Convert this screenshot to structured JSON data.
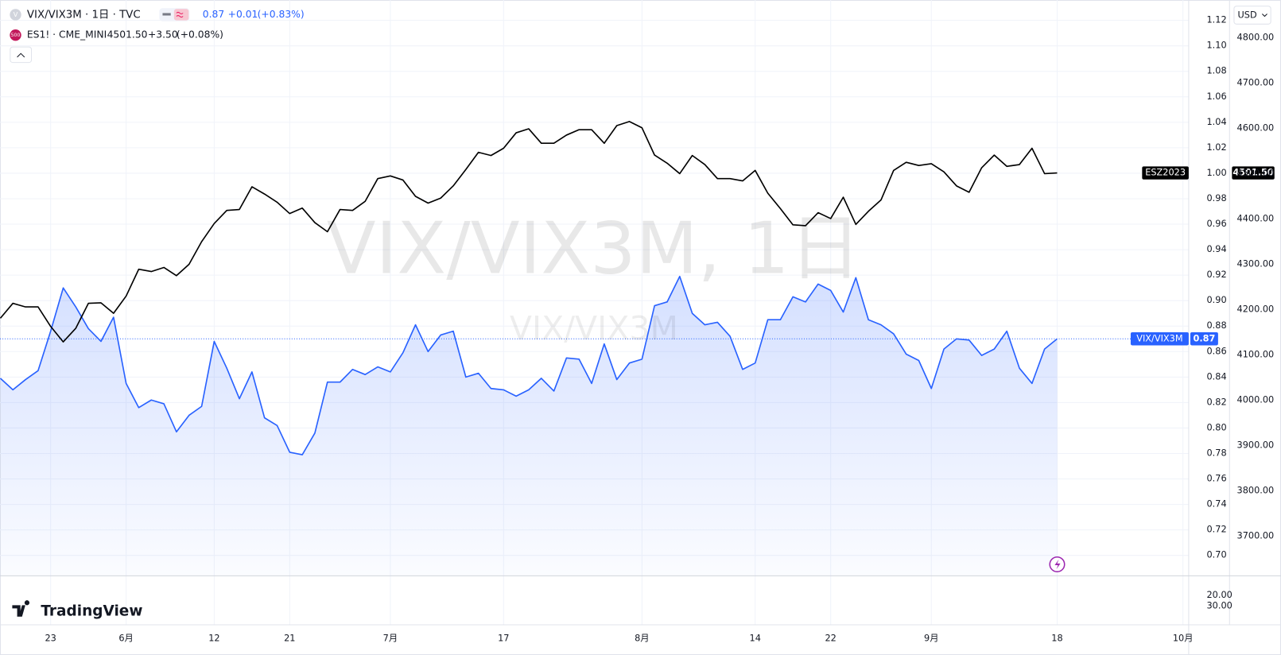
{
  "chart_data": {
    "type": "line",
    "categories": [
      null,
      null,
      null,
      null,
      "23",
      null,
      null,
      null,
      null,
      null,
      "6月",
      null,
      null,
      null,
      null,
      null,
      null,
      "12",
      null,
      null,
      null,
      null,
      null,
      "21",
      null,
      null,
      null,
      null,
      null,
      null,
      null,
      "7月",
      null,
      null,
      null,
      null,
      null,
      null,
      null,
      null,
      "17",
      null,
      null,
      null,
      null,
      null,
      null,
      null,
      null,
      null,
      null,
      "8月",
      null,
      null,
      null,
      null,
      null,
      null,
      null,
      null,
      "14",
      null,
      null,
      null,
      null,
      null,
      "22",
      null,
      null,
      null,
      null,
      null,
      null,
      null,
      "9月",
      null,
      null,
      null,
      null,
      null,
      null,
      null,
      null,
      null,
      "18",
      null,
      null,
      null,
      null,
      null,
      null,
      null,
      null,
      null,
      "10月"
    ],
    "series": [
      {
        "name": "VIX/VIX3M",
        "color": "#2962ff",
        "area": true,
        "last_label": "0.87",
        "values": [
          0.839,
          0.83,
          0.838,
          0.845,
          0.876,
          0.91,
          0.895,
          0.878,
          0.868,
          0.887,
          0.835,
          0.816,
          0.822,
          0.819,
          0.797,
          0.81,
          0.817,
          0.868,
          0.847,
          0.823,
          0.844,
          0.808,
          0.802,
          0.781,
          0.779,
          0.796,
          0.836,
          0.836,
          0.846,
          0.842,
          0.848,
          0.844,
          0.859,
          0.881,
          0.86,
          0.873,
          0.876,
          0.84,
          0.843,
          0.831,
          0.83,
          0.825,
          0.83,
          0.839,
          0.829,
          0.855,
          0.854,
          0.835,
          0.866,
          0.838,
          0.851,
          0.854,
          0.896,
          0.899,
          0.919,
          0.89,
          0.881,
          0.883,
          0.872,
          0.846,
          0.851,
          0.885,
          0.885,
          0.903,
          0.899,
          0.913,
          0.908,
          0.891,
          0.918,
          0.885,
          0.881,
          0.874,
          0.858,
          0.853,
          0.831,
          0.862,
          0.87,
          0.869,
          0.857,
          0.862,
          0.876,
          0.847,
          0.835,
          0.862,
          0.87,
          null,
          null,
          null,
          null,
          null,
          null,
          null,
          null,
          null,
          null
        ]
      },
      {
        "name": "ESZ2023",
        "color": "#000000",
        "axis": "y2",
        "last_label": "4501.50",
        "values": [
          4181,
          4214,
          4206,
          4206,
          4163,
          4129,
          4159,
          4214,
          4215,
          4192,
          4230,
          4289,
          4284,
          4293,
          4275,
          4300,
          4350,
          4390,
          4419,
          4421,
          4471,
          4455,
          4437,
          4412,
          4424,
          4392,
          4372,
          4421,
          4419,
          4439,
          4489,
          4495,
          4486,
          4450,
          4435,
          4446,
          4473,
          4509,
          4547,
          4540,
          4556,
          4590,
          4599,
          4567,
          4567,
          4585,
          4597,
          4597,
          4567,
          4606,
          4615,
          4601,
          4541,
          4523,
          4500,
          4540,
          4520,
          4489,
          4489,
          4484,
          4507,
          4457,
          4423,
          4387,
          4385,
          4414,
          4401,
          4448,
          4388,
          4417,
          4442,
          4507,
          4525,
          4518,
          4522,
          4504,
          4473,
          4459,
          4513,
          4541,
          4516,
          4520,
          4556,
          4500,
          4501.5,
          null,
          null,
          null,
          null,
          null,
          null,
          null,
          null,
          null,
          null
        ]
      }
    ],
    "ylim": [
      0.684,
      1.136
    ],
    "yticks": [
      {
        "value": 0.7,
        "label": "0.70"
      },
      0.72,
      0.74,
      0.76,
      0.78,
      {
        "value": 0.8,
        "label": "0.80"
      },
      0.82,
      0.84,
      0.86,
      0.88,
      {
        "value": 0.9,
        "label": "0.90"
      },
      0.92,
      0.94,
      0.96,
      0.98,
      {
        "value": 1,
        "label": "1.00"
      },
      1.02,
      1.04,
      1.06,
      1.08,
      {
        "value": 1.1,
        "label": "1.10"
      },
      1.12
    ],
    "y2lim": [
      3613,
      4883
    ],
    "y2ticks": [
      {
        "value": 3700,
        "label": "3700.00"
      },
      {
        "value": 3800,
        "label": "3800.00"
      },
      {
        "value": 3900,
        "label": "3900.00"
      },
      {
        "value": 4000,
        "label": "4000.00"
      },
      {
        "value": 4100,
        "label": "4100.00"
      },
      {
        "value": 4200,
        "label": "4200.00"
      },
      {
        "value": 4300,
        "label": "4300.00"
      },
      {
        "value": 4400,
        "label": "4400.00"
      },
      {
        "value": 4500,
        "label": "4500.00"
      },
      {
        "value": 4600,
        "label": "4600.00"
      },
      {
        "value": 4700,
        "label": "4700.00"
      },
      {
        "value": 4800,
        "label": "4800.00"
      }
    ],
    "grid": true
  },
  "ui": {
    "header": {
      "symbol": "VIX/VIX3M · 1日 · TVC",
      "icon": "V",
      "price": "0.87",
      "change": "+0.01",
      "change_pct": "(+0.83%)"
    },
    "compare": {
      "symbol": "ES1! · CME_MINI",
      "icon": "500",
      "price": "4501.50",
      "change": "+3.50",
      "change_pct": "(+0.08%)"
    },
    "watermark": "VIX/VIX3M, 1日",
    "watermark_sub": "VIX/VIX3M",
    "currency": "USD",
    "lower_pane_ticks": [
      "20.00",
      "30.00"
    ],
    "logo": "TradingView"
  }
}
